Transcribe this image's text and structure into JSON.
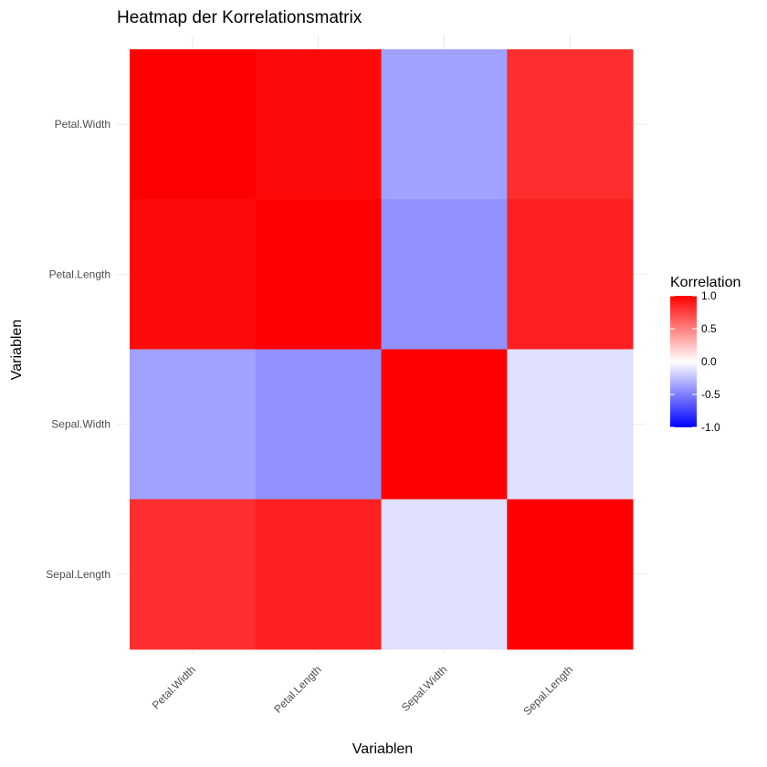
{
  "chart_data": {
    "type": "heatmap",
    "title": "Heatmap der Korrelationsmatrix",
    "xlabel": "Variablen",
    "ylabel": "Variablen",
    "x_categories": [
      "Petal.Width",
      "Petal.Length",
      "Sepal.Width",
      "Sepal.Length"
    ],
    "y_categories": [
      "Petal.Width",
      "Petal.Length",
      "Sepal.Width",
      "Sepal.Length"
    ],
    "values": [
      [
        1.0,
        0.96,
        -0.37,
        0.82
      ],
      [
        0.96,
        1.0,
        -0.43,
        0.87
      ],
      [
        -0.37,
        -0.43,
        1.0,
        -0.12
      ],
      [
        0.82,
        0.87,
        -0.12,
        1.0
      ]
    ],
    "grid": true,
    "legend": {
      "title": "Korrelation",
      "position": "right",
      "range": [
        -1,
        1
      ],
      "labels": [
        "1.0",
        "0.5",
        "0.0",
        "-0.5",
        "-1.0"
      ],
      "colors": {
        "low": "#0000FF",
        "mid": "#FFFFFF",
        "high": "#FF0000"
      }
    }
  }
}
